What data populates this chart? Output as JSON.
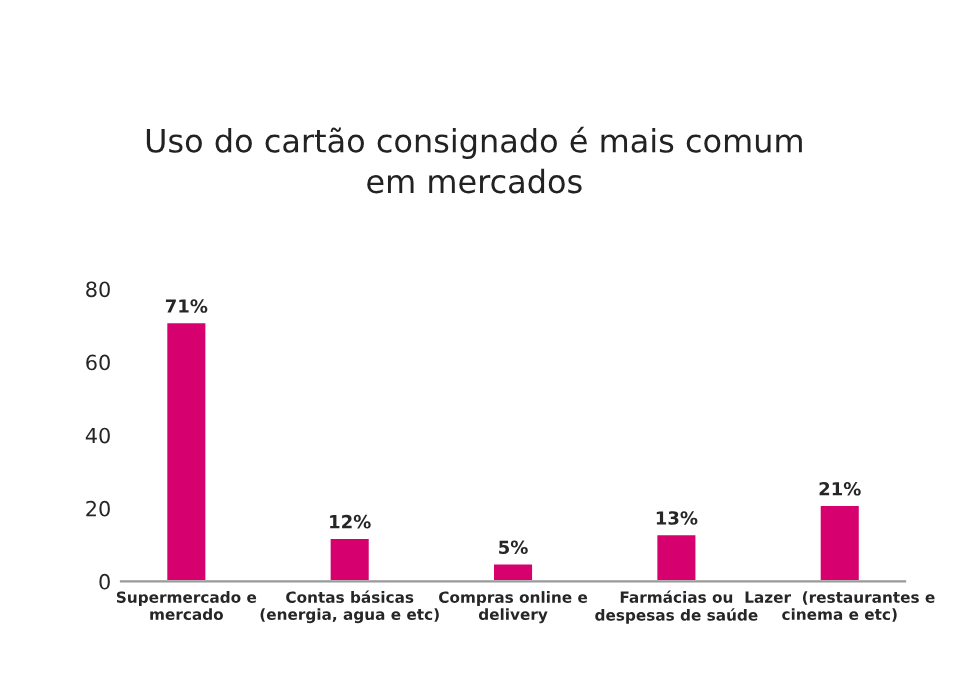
{
  "chart_data": {
    "type": "bar",
    "title": "Uso do cartão consignado é mais comum\nem mercados",
    "categories": [
      "Supermercado e\nmercado",
      "Contas básicas\n(energia, agua e etc)",
      "Compras online e\ndelivery",
      "Farmácias ou\ndespesas de saúde",
      "Lazer  (restaurantes e\ncinema e etc)"
    ],
    "values": [
      71,
      12,
      5,
      13,
      21
    ],
    "value_labels": [
      "71%",
      "12%",
      "5%",
      "13%",
      "21%"
    ],
    "color": "#d6006f",
    "ylim": [
      0,
      80
    ],
    "yticks": [
      0,
      20,
      40,
      60,
      80
    ],
    "grid": false,
    "legend": false
  }
}
